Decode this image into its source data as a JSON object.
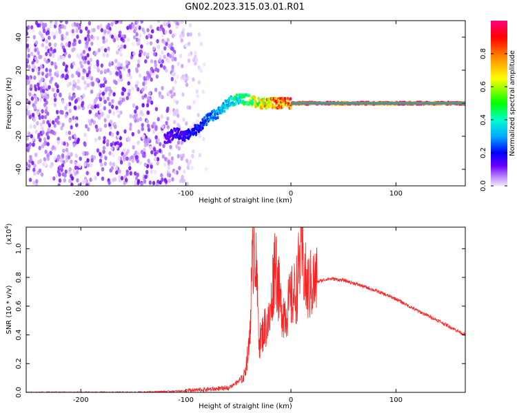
{
  "title": "GN02.2023.315.03.01.R01",
  "chart_data": [
    {
      "type": "heatmap",
      "title": "GN02.2023.315.03.01.R01",
      "xlabel": "Height of straight line (km)",
      "ylabel": "Frequency (Hz)",
      "xlim": [
        -252,
        166
      ],
      "ylim": [
        -50,
        50
      ],
      "xticks": [
        -200,
        -100,
        0,
        100
      ],
      "xtick_labels": [
        "-200",
        "-100",
        "0",
        "100"
      ],
      "yticks": [
        -40,
        -20,
        0,
        20,
        40
      ],
      "ytick_labels": [
        "-40",
        "-20",
        "0",
        "20",
        "40"
      ],
      "grid": false,
      "colorbar": {
        "label": "Normalized spectral amplitude",
        "range": [
          0,
          1
        ],
        "ticks": [
          0.0,
          0.2,
          0.4,
          0.6,
          0.8
        ],
        "tick_labels": [
          "0.0",
          "0.2",
          "0.4",
          "0.6",
          "0.8"
        ],
        "colormap": [
          "#f3e6ff",
          "#c090ff",
          "#6a00ff",
          "#0000ff",
          "#00aaff",
          "#00ffcc",
          "#00ff00",
          "#ffff00",
          "#ff8800",
          "#ff0000",
          "#ff0080"
        ]
      },
      "noise_region": {
        "x_from": -252,
        "x_to": -80,
        "amplitude": 0.2
      },
      "signal_trace": {
        "x": [
          -120,
          -110,
          -100,
          -90,
          -80,
          -70,
          -60,
          -50,
          -40,
          -30,
          -20,
          -10,
          0,
          166
        ],
        "y": [
          -22,
          -18,
          -20,
          -16,
          -10,
          -6,
          0,
          3,
          2,
          0,
          0,
          0,
          0,
          0
        ],
        "amplitude": [
          0.25,
          0.3,
          0.3,
          0.35,
          0.4,
          0.45,
          0.5,
          0.6,
          0.7,
          0.8,
          0.9,
          0.95,
          1.0,
          1.0
        ]
      }
    },
    {
      "type": "line",
      "xlabel": "Height of straight line (km)",
      "ylabel": "SNR (10 * v/v)",
      "y_multiplier": "(x10",
      "y_multiplier_exp": "4",
      "y_multiplier_close": ")",
      "xlim": [
        -252,
        166
      ],
      "ylim": [
        0,
        1.15
      ],
      "xticks": [
        -200,
        -100,
        0,
        100
      ],
      "xtick_labels": [
        "-200",
        "-100",
        "0",
        "100"
      ],
      "yticks": [
        0.0,
        0.2,
        0.4,
        0.6,
        0.8,
        1.0
      ],
      "ytick_labels": [
        "0.0",
        "0.2",
        "0.4",
        "0.6",
        "0.8",
        "1.0"
      ],
      "grid": false,
      "color": "#ff2020",
      "series": [
        {
          "x": [
            -252,
            -200,
            -150,
            -100,
            -80,
            -60,
            -45,
            -40,
            -35,
            -30,
            -25,
            -20,
            -15,
            -10,
            -5,
            0,
            5,
            10,
            15,
            20,
            25,
            30,
            35,
            40,
            50,
            60,
            80,
            100,
            120,
            140,
            166
          ],
          "y": [
            0.0,
            0.0,
            0.0,
            0.01,
            0.02,
            0.03,
            0.1,
            0.3,
            1.15,
            0.35,
            0.45,
            0.5,
            0.95,
            0.6,
            0.55,
            0.65,
            0.7,
            1.0,
            0.72,
            0.75,
            0.77,
            0.78,
            0.79,
            0.79,
            0.78,
            0.76,
            0.71,
            0.65,
            0.57,
            0.5,
            0.4
          ]
        }
      ]
    }
  ]
}
